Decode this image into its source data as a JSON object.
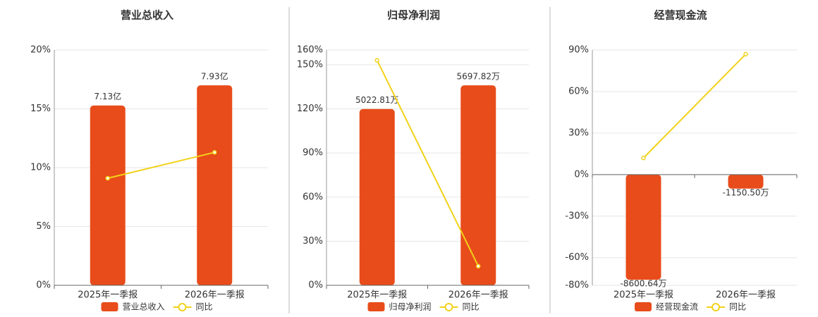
{
  "chart_data": [
    {
      "type": "bar",
      "title": "营业总收入",
      "categories": [
        "2025年一季报",
        "2026年一季报"
      ],
      "series": [
        {
          "name": "营业总收入",
          "type": "bar",
          "color": "#e84c1a",
          "values": [
            7.13,
            7.93
          ],
          "value_labels": [
            "7.13亿",
            "7.93亿"
          ]
        },
        {
          "name": "同比",
          "type": "line",
          "color": "#f2d21a",
          "values": [
            9.1,
            11.3
          ]
        }
      ],
      "ylim": [
        0,
        20
      ],
      "yticks": [
        {
          "value": 0,
          "label": "0%"
        },
        {
          "value": 5,
          "label": "5%"
        },
        {
          "value": 10,
          "label": "10%"
        },
        {
          "value": 15,
          "label": "15%"
        },
        {
          "value": 20,
          "label": "20%"
        }
      ],
      "grid": true
    },
    {
      "type": "bar",
      "title": "归母净利润",
      "categories": [
        "2025年一季报",
        "2026年一季报"
      ],
      "series": [
        {
          "name": "归母净利润",
          "type": "bar",
          "color": "#e84c1a",
          "values": [
            5022.81,
            5697.82
          ],
          "value_labels": [
            "5022.81万",
            "5697.82万"
          ]
        },
        {
          "name": "同比",
          "type": "line",
          "color": "#f2d21a",
          "values": [
            153,
            13
          ]
        }
      ],
      "ylim": [
        0,
        160
      ],
      "yticks": [
        {
          "value": 0,
          "label": "0%"
        },
        {
          "value": 30,
          "label": "30%"
        },
        {
          "value": 60,
          "label": "60%"
        },
        {
          "value": 90,
          "label": "90%"
        },
        {
          "value": 120,
          "label": "120%"
        },
        {
          "value": 150,
          "label": "150%"
        },
        {
          "value": 160,
          "label": "160%"
        }
      ],
      "grid": true
    },
    {
      "type": "bar",
      "title": "经营现金流",
      "categories": [
        "2025年一季报",
        "2026年一季报"
      ],
      "series": [
        {
          "name": "经营现金流",
          "type": "bar",
          "color": "#e84c1a",
          "values": [
            -8600.64,
            -1150.5
          ],
          "value_labels": [
            "-8600.64万",
            "-1150.50万"
          ]
        },
        {
          "name": "同比",
          "type": "line",
          "color": "#f2d21a",
          "values": [
            12,
            87
          ]
        }
      ],
      "ylim": [
        -80,
        90
      ],
      "yticks": [
        {
          "value": -80,
          "label": "-80%"
        },
        {
          "value": -60,
          "label": "-60%"
        },
        {
          "value": -30,
          "label": "-30%"
        },
        {
          "value": 0,
          "label": "0%"
        },
        {
          "value": 30,
          "label": "30%"
        },
        {
          "value": 60,
          "label": "60%"
        },
        {
          "value": 90,
          "label": "90%"
        }
      ],
      "grid": true
    }
  ]
}
